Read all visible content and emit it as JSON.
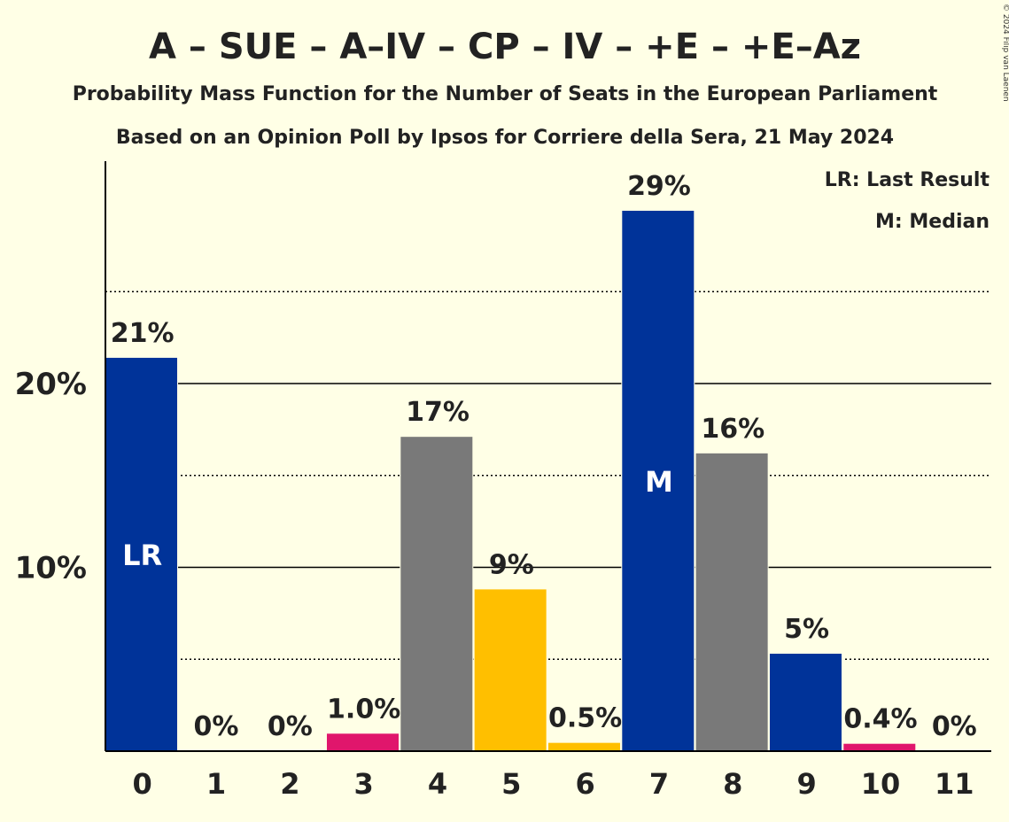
{
  "copyright": "© 2024 Filip van Laenen",
  "chart_data": {
    "type": "bar",
    "title": "A – SUE – A–IV – CP – IV – +E – +E–Az",
    "subtitle": "Probability Mass Function for the Number of Seats in the European Parliament",
    "source": "Based on an Opinion Poll by Ipsos for Corriere della Sera, 21 May 2024",
    "legend": {
      "placement": "top-right",
      "items": [
        "LR: Last Result",
        "M: Median"
      ]
    },
    "categories": [
      "0",
      "1",
      "2",
      "3",
      "4",
      "5",
      "6",
      "7",
      "8",
      "9",
      "10",
      "11"
    ],
    "values": [
      21.4,
      0,
      0,
      0.95,
      17.1,
      8.8,
      0.45,
      29.4,
      16.2,
      5.3,
      0.4,
      0
    ],
    "labels": [
      "21%",
      "0%",
      "0%",
      "1.0%",
      "17%",
      "9%",
      "0.5%",
      "29%",
      "16%",
      "5%",
      "0.4%",
      "0%"
    ],
    "colors": [
      "#003399",
      "#E0166C",
      "#E0166C",
      "#E0166C",
      "#797979",
      "#FFBF00",
      "#FFBF00",
      "#003399",
      "#797979",
      "#003399",
      "#E0166C",
      "#E0166C"
    ],
    "markers": {
      "0": "LR",
      "7": "M"
    },
    "yticks": [
      {
        "value": 10,
        "label": "10%"
      },
      {
        "value": 20,
        "label": "20%"
      }
    ],
    "minor_gridlines": [
      5,
      15,
      25
    ],
    "ylim": [
      0,
      32
    ],
    "grid": true
  }
}
